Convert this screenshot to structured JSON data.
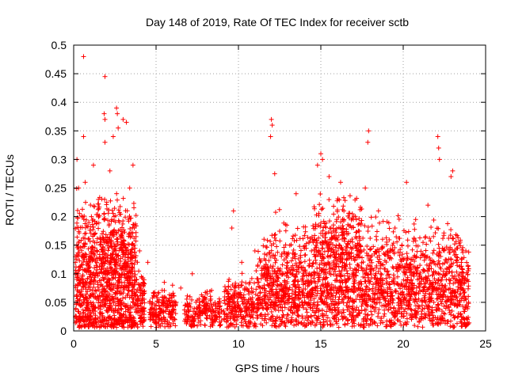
{
  "chart_data": {
    "type": "scatter",
    "title": "Day 148 of 2019, Rate Of TEC Index for receiver sctb",
    "xlabel": "GPS time / hours",
    "ylabel": "ROTI / TECUs",
    "xlim": [
      0,
      25
    ],
    "ylim": [
      0,
      0.5
    ],
    "x_ticks": [
      0,
      5,
      10,
      15,
      20,
      25
    ],
    "x_tick_labels": [
      "0",
      "5",
      "10",
      "15",
      "20",
      "25"
    ],
    "y_ticks": [
      0,
      0.05,
      0.1,
      0.15,
      0.2,
      0.25,
      0.3,
      0.35,
      0.4,
      0.45,
      0.5
    ],
    "y_tick_labels": [
      "0",
      "0.05",
      "0.1",
      "0.15",
      "0.2",
      "0.25",
      "0.3",
      "0.35",
      "0.4",
      "0.45",
      "0.5"
    ],
    "grid": true,
    "legend": "none",
    "marker": "plus",
    "series": [
      {
        "name": "ROTI",
        "color": "#ff0000",
        "points": [
          [
            0.6,
            0.48
          ],
          [
            1.9,
            0.445
          ],
          [
            2.6,
            0.39
          ],
          [
            2.65,
            0.38
          ],
          [
            1.85,
            0.38
          ],
          [
            1.9,
            0.37
          ],
          [
            3.0,
            0.37
          ],
          [
            3.2,
            0.365
          ],
          [
            2.7,
            0.355
          ],
          [
            0.6,
            0.34
          ],
          [
            1.9,
            0.33
          ],
          [
            2.4,
            0.34
          ],
          [
            12.0,
            0.37
          ],
          [
            12.05,
            0.36
          ],
          [
            11.95,
            0.34
          ],
          [
            17.9,
            0.35
          ],
          [
            17.85,
            0.33
          ],
          [
            22.1,
            0.34
          ],
          [
            22.15,
            0.32
          ],
          [
            22.2,
            0.3
          ],
          [
            15.0,
            0.31
          ],
          [
            15.1,
            0.3
          ],
          [
            14.8,
            0.29
          ],
          [
            23.0,
            0.28
          ],
          [
            22.9,
            0.27
          ],
          [
            12.2,
            0.275
          ],
          [
            16.2,
            0.26
          ],
          [
            0.2,
            0.3
          ],
          [
            0.3,
            0.25
          ],
          [
            0.7,
            0.26
          ],
          [
            1.2,
            0.29
          ],
          [
            1.5,
            0.23
          ],
          [
            2.2,
            0.28
          ],
          [
            3.6,
            0.29
          ],
          [
            3.4,
            0.25
          ],
          [
            13.5,
            0.24
          ],
          [
            15.5,
            0.27
          ],
          [
            17.7,
            0.25
          ],
          [
            20.2,
            0.26
          ],
          [
            9.7,
            0.21
          ],
          [
            9.6,
            0.18
          ],
          [
            4.0,
            0.14
          ],
          [
            4.5,
            0.12
          ],
          [
            5.5,
            0.085
          ],
          [
            6.0,
            0.08
          ],
          [
            6.5,
            0.075
          ],
          [
            7.2,
            0.1
          ],
          [
            10.2,
            0.12
          ],
          [
            11.0,
            0.14
          ],
          [
            11.5,
            0.11
          ],
          [
            18.5,
            0.21
          ],
          [
            19.5,
            0.18
          ],
          [
            21.5,
            0.22
          ],
          [
            23.8,
            0.14
          ],
          [
            0.4,
            0.02
          ],
          [
            23.9,
            0.02
          ]
        ],
        "bands": [
          {
            "x": [
              0.1,
              3.8
            ],
            "mean": 0.075,
            "spread": 0.11,
            "n": 950
          },
          {
            "x": [
              0.1,
              3.8
            ],
            "mean": 0.16,
            "spread": 0.08,
            "n": 240
          },
          {
            "x": [
              3.8,
              4.3
            ],
            "mean": 0.05,
            "spread": 0.06,
            "n": 90
          },
          {
            "x": [
              4.6,
              6.2
            ],
            "mean": 0.035,
            "spread": 0.035,
            "n": 180
          },
          {
            "x": [
              6.7,
              9.0
            ],
            "mean": 0.032,
            "spread": 0.03,
            "n": 200
          },
          {
            "x": [
              9.1,
              11.0
            ],
            "mean": 0.045,
            "spread": 0.045,
            "n": 230
          },
          {
            "x": [
              11.0,
              24.0
            ],
            "mean": 0.06,
            "spread": 0.065,
            "n": 1700
          },
          {
            "x": [
              11.5,
              24.0
            ],
            "mean": 0.13,
            "spread": 0.06,
            "n": 600
          },
          {
            "x": [
              14.5,
              17.5
            ],
            "mean": 0.17,
            "spread": 0.06,
            "n": 180
          }
        ]
      }
    ]
  }
}
